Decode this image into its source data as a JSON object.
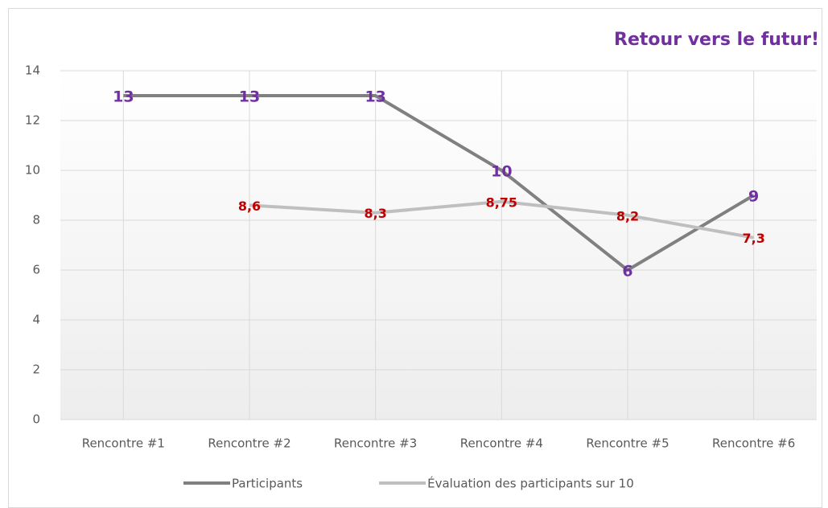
{
  "chart_data": {
    "type": "line",
    "title": "Retour vers le futur!",
    "title_color": "#7030a0",
    "categories": [
      "Rencontre #1",
      "Rencontre #2",
      "Rencontre #3",
      "Rencontre #4",
      "Rencontre #5",
      "Rencontre #6"
    ],
    "series": [
      {
        "name": "Participants",
        "color": "#808080",
        "label_color": "#7030a0",
        "values": [
          13,
          13,
          13,
          10,
          6,
          9
        ]
      },
      {
        "name": "Évaluation des participants sur 10",
        "color": "#bfbfbf",
        "label_color": "#c00000",
        "values": [
          null,
          8.6,
          8.3,
          8.75,
          8.2,
          7.3
        ],
        "value_labels": [
          null,
          "8,6",
          "8,3",
          "8,75",
          "8,2",
          "7,3"
        ]
      }
    ],
    "ylim": [
      0,
      14
    ],
    "yticks": [
      0,
      2,
      4,
      6,
      8,
      10,
      12,
      14
    ],
    "grid": true,
    "legend": "bottom"
  }
}
